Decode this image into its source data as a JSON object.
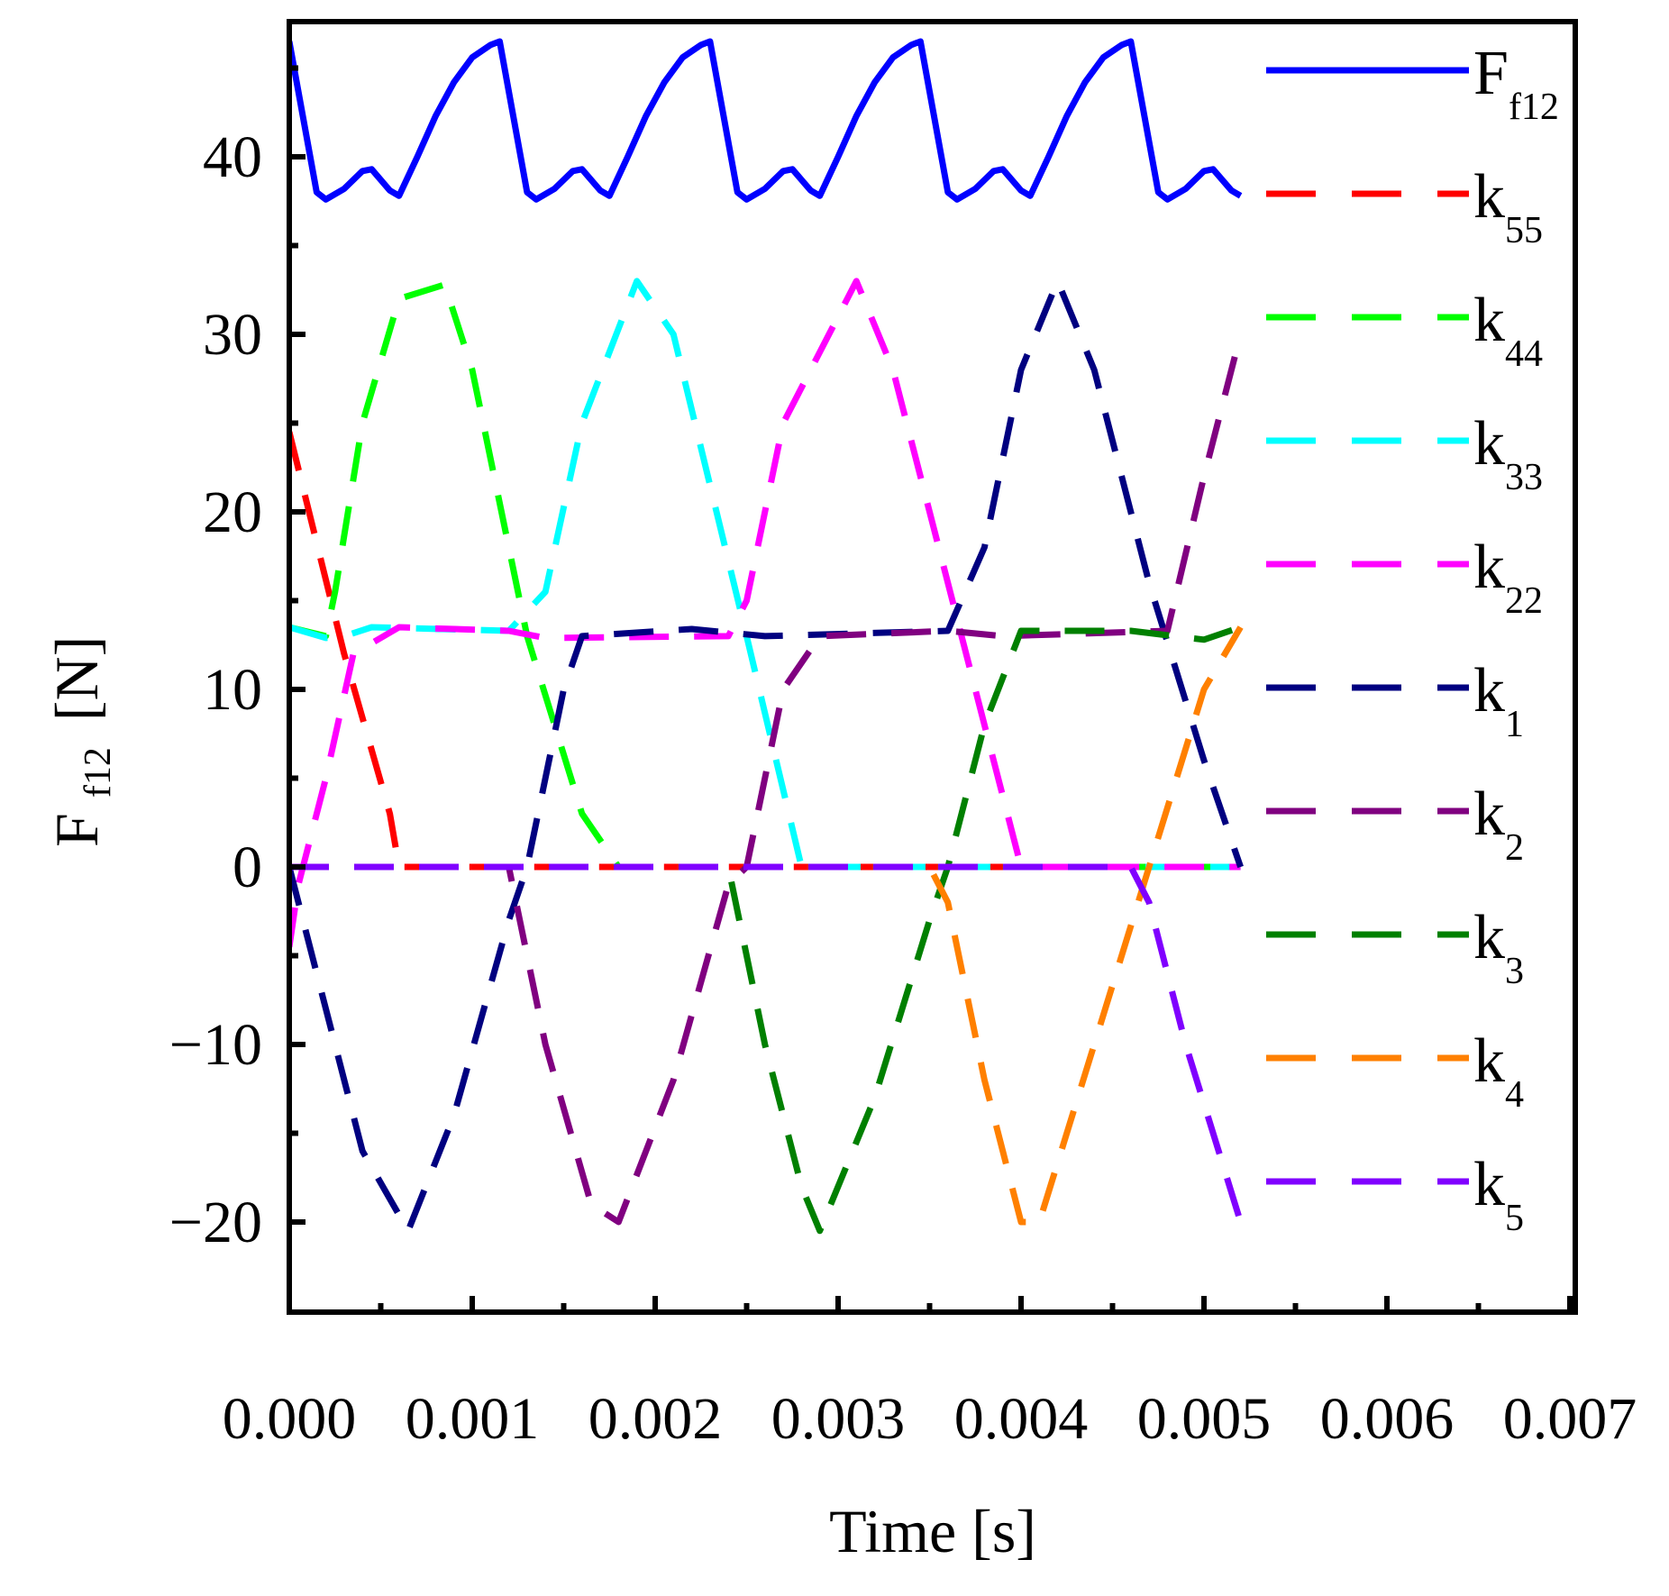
{
  "chart_data": {
    "type": "line",
    "xlabel": "Time [s]",
    "ylabel_main": "F",
    "ylabel_sub": "f12",
    "ylabel_unit": "[N]",
    "xlim": [
      0,
      0.007
    ],
    "ylim": [
      -25,
      47
    ],
    "xticks": [
      0.0,
      0.001,
      0.002,
      0.003,
      0.004,
      0.005,
      0.006,
      0.007
    ],
    "xtick_labels": [
      "0.000",
      "0.001",
      "0.002",
      "0.003",
      "0.004",
      "0.005",
      "0.006",
      "0.007"
    ],
    "yticks": [
      -20,
      -10,
      0,
      10,
      20,
      30,
      40
    ],
    "ytick_labels": [
      "−20",
      "−10",
      "0",
      "10",
      "20",
      "30",
      "40"
    ],
    "series": [
      {
        "name": "F_f12",
        "label_main": "F",
        "label_sub": "f12",
        "color": "#0000ff",
        "dash": "solid",
        "points": [
          [
            0.0,
            46.5
          ],
          [
            0.00015,
            38.0
          ],
          [
            0.0002,
            37.6
          ],
          [
            0.0003,
            38.2
          ],
          [
            0.0004,
            39.2
          ],
          [
            0.00045,
            39.3
          ],
          [
            0.00055,
            38.1
          ],
          [
            0.0006,
            37.8
          ],
          [
            0.0007,
            40.0
          ],
          [
            0.0008,
            42.3
          ],
          [
            0.0009,
            44.2
          ],
          [
            0.001,
            45.6
          ],
          [
            0.0011,
            46.3
          ],
          [
            0.00115,
            46.5
          ],
          [
            0.0013,
            38.0
          ],
          [
            0.00135,
            37.6
          ],
          [
            0.00145,
            38.2
          ],
          [
            0.00155,
            39.2
          ],
          [
            0.0016,
            39.3
          ],
          [
            0.0017,
            38.1
          ],
          [
            0.00175,
            37.8
          ],
          [
            0.00185,
            40.0
          ],
          [
            0.00195,
            42.3
          ],
          [
            0.00205,
            44.2
          ],
          [
            0.00215,
            45.6
          ],
          [
            0.00225,
            46.3
          ],
          [
            0.0023,
            46.5
          ],
          [
            0.00245,
            38.0
          ],
          [
            0.0025,
            37.6
          ],
          [
            0.0026,
            38.2
          ],
          [
            0.0027,
            39.2
          ],
          [
            0.00275,
            39.3
          ],
          [
            0.00285,
            38.1
          ],
          [
            0.0029,
            37.8
          ],
          [
            0.003,
            40.0
          ],
          [
            0.0031,
            42.3
          ],
          [
            0.0032,
            44.2
          ],
          [
            0.0033,
            45.6
          ],
          [
            0.0034,
            46.3
          ],
          [
            0.00345,
            46.5
          ],
          [
            0.0036,
            38.0
          ],
          [
            0.00365,
            37.6
          ],
          [
            0.00375,
            38.2
          ],
          [
            0.00385,
            39.2
          ],
          [
            0.0039,
            39.3
          ],
          [
            0.004,
            38.1
          ],
          [
            0.00405,
            37.8
          ],
          [
            0.00415,
            40.0
          ],
          [
            0.00425,
            42.3
          ],
          [
            0.00435,
            44.2
          ],
          [
            0.00445,
            45.6
          ],
          [
            0.00455,
            46.3
          ],
          [
            0.0046,
            46.5
          ],
          [
            0.00475,
            38.0
          ],
          [
            0.0048,
            37.6
          ],
          [
            0.0049,
            38.2
          ],
          [
            0.005,
            39.2
          ],
          [
            0.00505,
            39.3
          ],
          [
            0.00515,
            38.1
          ],
          [
            0.0052,
            37.8
          ]
        ]
      },
      {
        "name": "k_55",
        "label_main": "k",
        "label_sub": "55",
        "color": "#ff0000",
        "dash": "dashed",
        "points": [
          [
            0.0,
            24.5
          ],
          [
            0.0003,
            12.0
          ],
          [
            0.00055,
            3.0
          ],
          [
            0.0006,
            0.0
          ],
          [
            0.0052,
            0.0
          ]
        ]
      },
      {
        "name": "k_44",
        "label_main": "k",
        "label_sub": "44",
        "color": "#00ff00",
        "dash": "dashed",
        "points": [
          [
            0.0,
            13.5
          ],
          [
            0.0002,
            13.0
          ],
          [
            0.00025,
            15.5
          ],
          [
            0.0004,
            25.0
          ],
          [
            0.0006,
            32.0
          ],
          [
            0.00085,
            32.8
          ],
          [
            0.001,
            28.0
          ],
          [
            0.0013,
            13.0
          ],
          [
            0.0016,
            3.0
          ],
          [
            0.0018,
            0.0
          ],
          [
            0.0052,
            0.0
          ]
        ]
      },
      {
        "name": "k_33",
        "label_main": "k",
        "label_sub": "33",
        "color": "#00ffff",
        "dash": "dashed",
        "points": [
          [
            0.0,
            13.5
          ],
          [
            0.0002,
            12.9
          ],
          [
            0.0003,
            13.0
          ],
          [
            0.00045,
            13.5
          ],
          [
            0.0012,
            13.3
          ],
          [
            0.0014,
            15.5
          ],
          [
            0.0016,
            25.0
          ],
          [
            0.0019,
            33.0
          ],
          [
            0.0021,
            30.0
          ],
          [
            0.0025,
            13.0
          ],
          [
            0.0028,
            0.0
          ],
          [
            0.0052,
            0.0
          ]
        ]
      },
      {
        "name": "k_22",
        "label_main": "k",
        "label_sub": "22",
        "color": "#ff00ff",
        "dash": "dashed",
        "points": [
          [
            0.0,
            -4.5
          ],
          [
            5e-05,
            -1.0
          ],
          [
            0.0002,
            5.0
          ],
          [
            0.00035,
            12.0
          ],
          [
            0.0006,
            13.5
          ],
          [
            0.0012,
            13.3
          ],
          [
            0.0014,
            12.9
          ],
          [
            0.0024,
            13.0
          ],
          [
            0.0025,
            15.0
          ],
          [
            0.0027,
            25.0
          ],
          [
            0.0031,
            33.0
          ],
          [
            0.0033,
            28.0
          ],
          [
            0.0037,
            12.0
          ],
          [
            0.004,
            0.0
          ],
          [
            0.0052,
            0.0
          ]
        ]
      },
      {
        "name": "k_1",
        "label_main": "k",
        "label_sub": "1",
        "color": "#000080",
        "dash": "dashed",
        "points": [
          [
            0.0,
            0.0
          ],
          [
            0.0002,
            -8.0
          ],
          [
            0.0004,
            -16.0
          ],
          [
            0.00065,
            -20.5
          ],
          [
            0.0009,
            -14.0
          ],
          [
            0.0012,
            -3.0
          ],
          [
            0.0013,
            0.0
          ],
          [
            0.0015,
            10.0
          ],
          [
            0.0016,
            13.0
          ],
          [
            0.0022,
            13.4
          ],
          [
            0.0026,
            13.0
          ],
          [
            0.0036,
            13.3
          ],
          [
            0.0038,
            18.0
          ],
          [
            0.004,
            28.0
          ],
          [
            0.0042,
            33.0
          ],
          [
            0.0044,
            28.0
          ],
          [
            0.0047,
            16.0
          ],
          [
            0.005,
            6.0
          ],
          [
            0.0052,
            0.0
          ]
        ]
      },
      {
        "name": "k_2",
        "label_main": "k",
        "label_sub": "2",
        "color": "#800080",
        "dash": "dashed",
        "points": [
          [
            0.0,
            0.0
          ],
          [
            0.0012,
            0.0
          ],
          [
            0.0014,
            -10.0
          ],
          [
            0.00165,
            -19.0
          ],
          [
            0.0018,
            -20.0
          ],
          [
            0.0021,
            -12.0
          ],
          [
            0.0024,
            -1.0
          ],
          [
            0.0025,
            0.0
          ],
          [
            0.0027,
            10.0
          ],
          [
            0.0029,
            13.0
          ],
          [
            0.0036,
            13.3
          ],
          [
            0.0039,
            13.0
          ],
          [
            0.0048,
            13.3
          ],
          [
            0.005,
            22.0
          ],
          [
            0.0052,
            30.0
          ]
        ]
      },
      {
        "name": "k_3",
        "label_main": "k",
        "label_sub": "3",
        "color": "#008000",
        "dash": "dashed",
        "points": [
          [
            0.0,
            0.0
          ],
          [
            0.0024,
            0.0
          ],
          [
            0.0026,
            -10.0
          ],
          [
            0.0028,
            -18.0
          ],
          [
            0.0029,
            -20.5
          ],
          [
            0.0032,
            -13.0
          ],
          [
            0.0035,
            -3.0
          ],
          [
            0.0036,
            0.0
          ],
          [
            0.0038,
            8.0
          ],
          [
            0.004,
            13.3
          ],
          [
            0.0046,
            13.3
          ],
          [
            0.005,
            12.8
          ],
          [
            0.0052,
            13.5
          ]
        ]
      },
      {
        "name": "k_4",
        "label_main": "k",
        "label_sub": "4",
        "color": "#ff8000",
        "dash": "dashed",
        "points": [
          [
            0.0,
            0.0
          ],
          [
            0.0035,
            0.0
          ],
          [
            0.0036,
            -2.0
          ],
          [
            0.0038,
            -12.0
          ],
          [
            0.004,
            -20.0
          ],
          [
            0.0041,
            -20.0
          ],
          [
            0.0044,
            -10.0
          ],
          [
            0.0047,
            0.0
          ],
          [
            0.005,
            10.0
          ],
          [
            0.0052,
            13.5
          ]
        ]
      },
      {
        "name": "k_5",
        "label_main": "k",
        "label_sub": "5",
        "color": "#8000ff",
        "dash": "dashed",
        "points": [
          [
            0.0,
            0.0
          ],
          [
            0.0046,
            0.0
          ],
          [
            0.0047,
            -2.0
          ],
          [
            0.0049,
            -10.0
          ],
          [
            0.0052,
            -20.0
          ]
        ]
      }
    ],
    "legend_position": "right"
  }
}
